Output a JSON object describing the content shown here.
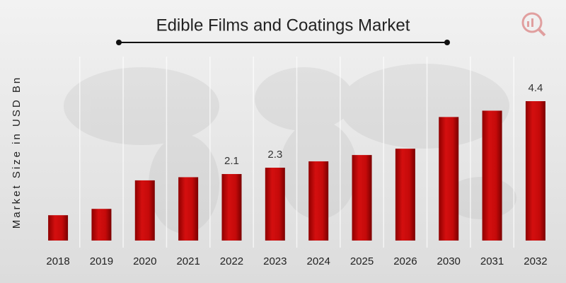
{
  "chart_data": {
    "type": "bar",
    "title": "Edible Films and Coatings Market",
    "y_label": "Market Size in USD Bn",
    "categories": [
      "2018",
      "2019",
      "2020",
      "2021",
      "2022",
      "2023",
      "2024",
      "2025",
      "2026",
      "2030",
      "2031",
      "2032"
    ],
    "values": [
      0.8,
      1.0,
      1.9,
      2.0,
      2.1,
      2.3,
      2.5,
      2.7,
      2.9,
      3.9,
      4.1,
      4.4
    ],
    "value_labels": [
      null,
      null,
      null,
      null,
      "2.1",
      "2.3",
      null,
      null,
      null,
      null,
      null,
      "4.4"
    ],
    "color": "#c50a0a"
  }
}
